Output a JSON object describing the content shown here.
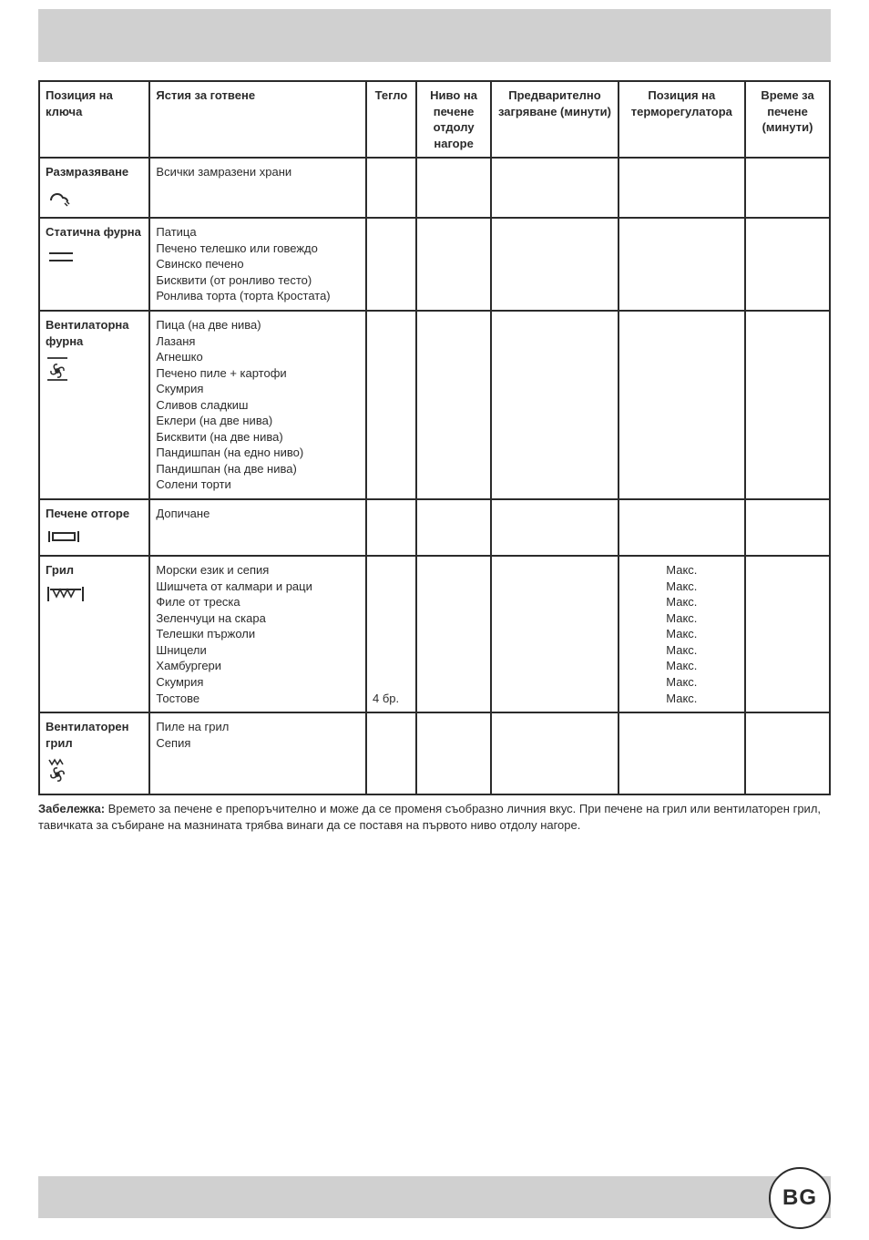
{
  "colors": {
    "strip": "#d0d0d0",
    "border": "#2b2b2b",
    "text": "#2b2b2b",
    "background": "#ffffff"
  },
  "table": {
    "headers": {
      "mode": "Позиция на ключа",
      "dishes": "Ястия за готвене",
      "weight": "Тегло",
      "level": "Ниво на печене отдолу нагоре",
      "preheat": "Предварително загряване (минути)",
      "thermo": "Позиция на терморегулатора",
      "time": "Време за печене (минути)"
    },
    "rows": [
      {
        "mode": "Размразяване",
        "icon": "defrost",
        "dishes": [
          "Всички замразени храни"
        ],
        "weight": [
          ""
        ],
        "level": [
          ""
        ],
        "preheat": [
          ""
        ],
        "thermo": [
          ""
        ],
        "time": [
          ""
        ]
      },
      {
        "mode": "Статична фурна",
        "icon": "static",
        "dishes": [
          "Патица",
          "Печено телешко или говеждо",
          "Свинско печено",
          "Бисквити (от ронливо тесто)",
          "Ронлива торта (торта Кростата)"
        ],
        "weight": [
          ""
        ],
        "level": [
          ""
        ],
        "preheat": [
          ""
        ],
        "thermo": [
          ""
        ],
        "time": [
          ""
        ]
      },
      {
        "mode": "Вентилаторна фурна",
        "icon": "fan",
        "dishes": [
          "Пица (на две нива)",
          "Лазаня",
          "Агнешко",
          "Печено пиле + картофи",
          "Скумрия",
          "Сливов сладкиш",
          "Еклери (на две нива)",
          "Бисквити (на две нива)",
          "Пандишпан (на едно ниво)",
          "Пандишпан (на две нива)",
          "Солени торти"
        ],
        "weight": [
          ""
        ],
        "level": [
          ""
        ],
        "preheat": [
          ""
        ],
        "thermo": [
          ""
        ],
        "time": [
          ""
        ]
      },
      {
        "mode": "Печене отгоре",
        "icon": "top",
        "dishes": [
          "Допичане"
        ],
        "weight": [
          ""
        ],
        "level": [
          ""
        ],
        "preheat": [
          ""
        ],
        "thermo": [
          ""
        ],
        "time": [
          ""
        ]
      },
      {
        "mode": "Грил",
        "icon": "grill",
        "dishes": [
          "Морски език и сепия",
          "Шишчета от калмари и раци",
          "Филе от треска",
          "Зеленчуци на скара",
          "Телешки пържоли",
          "Шницели",
          "Хамбургери",
          "Скумрия",
          "Тостове"
        ],
        "weight": [
          "",
          "",
          "",
          "",
          "",
          "",
          "",
          "",
          "4 бр."
        ],
        "level": [
          ""
        ],
        "preheat": [
          ""
        ],
        "thermo": [
          "Макс.",
          "Макс.",
          "Макс.",
          "Макс.",
          "Макс.",
          "Макс.",
          "Макс.",
          "Макс.",
          "Макс."
        ],
        "time": [
          ""
        ]
      },
      {
        "mode": "Вентилаторен грил",
        "icon": "fan-grill",
        "dishes": [
          "Пиле на грил",
          "Сепия"
        ],
        "weight": [
          ""
        ],
        "level": [
          ""
        ],
        "preheat": [
          ""
        ],
        "thermo": [
          ""
        ],
        "time": [
          ""
        ]
      }
    ]
  },
  "note": {
    "label": "Забележка:",
    "text": " Времето за печене е препоръчително и може да се променя съобразно личния вкус. При печене на грил или вентилаторен грил, тавичката за събиране на мазнината трябва винаги да се поставя на първото ниво отдолу нагоре."
  },
  "badge": "BG"
}
